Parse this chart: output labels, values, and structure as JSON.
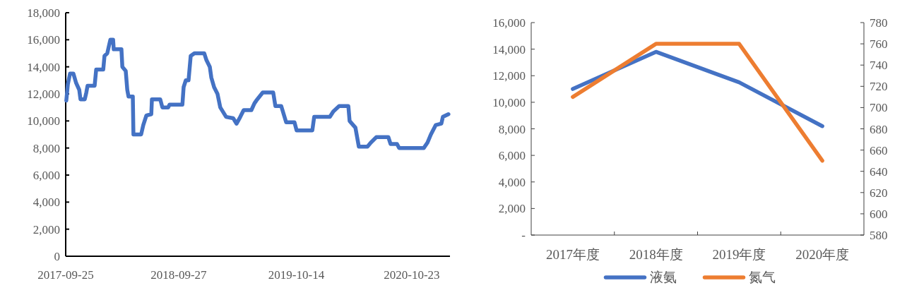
{
  "chart_data": [
    {
      "type": "line",
      "x": [
        "2017-09-27",
        "2017-10-02",
        "2017-10-09",
        "2017-10-20",
        "2017-10-29",
        "2017-11-08",
        "2017-11-12",
        "2017-11-26",
        "2017-12-01",
        "2017-12-05",
        "2017-12-28",
        "2018-01-02",
        "2018-01-25",
        "2018-01-29",
        "2018-02-07",
        "2018-02-12",
        "2018-02-17",
        "2018-02-26",
        "2018-02-28",
        "2018-03-25",
        "2018-03-28",
        "2018-04-08",
        "2018-04-13",
        "2018-04-17",
        "2018-05-01",
        "2018-05-03",
        "2018-05-28",
        "2018-06-04",
        "2018-06-14",
        "2018-06-30",
        "2018-07-02",
        "2018-07-29",
        "2018-08-05",
        "2018-08-24",
        "2018-08-28",
        "2018-10-09",
        "2018-10-13",
        "2018-10-20",
        "2018-10-29",
        "2018-11-05",
        "2018-11-17",
        "2018-12-19",
        "2018-12-26",
        "2019-01-06",
        "2019-01-11",
        "2019-01-20",
        "2019-01-31",
        "2019-02-09",
        "2019-02-28",
        "2019-03-23",
        "2019-04-03",
        "2019-04-15",
        "2019-04-26",
        "2019-05-21",
        "2019-05-31",
        "2019-06-06",
        "2019-06-27",
        "2019-07-31",
        "2019-08-07",
        "2019-08-26",
        "2019-09-11",
        "2019-10-08",
        "2019-10-15",
        "2019-12-05",
        "2019-12-11",
        "2020-01-31",
        "2020-02-11",
        "2020-03-01",
        "2020-03-31",
        "2020-04-04",
        "2020-04-23",
        "2020-05-04",
        "2020-06-01",
        "2020-06-12",
        "2020-06-30",
        "2020-08-08",
        "2020-08-15",
        "2020-09-05",
        "2020-09-12",
        "2020-12-01",
        "2020-12-13",
        "2020-12-24",
        "2021-01-09",
        "2021-01-27",
        "2021-02-01",
        "2021-02-19"
      ],
      "series": [
        {
          "color": "#4472c4",
          "values": [
            11500,
            12700,
            13500,
            13500,
            12800,
            12300,
            11600,
            11600,
            12100,
            12600,
            12600,
            13800,
            13800,
            14800,
            15000,
            15500,
            16000,
            16000,
            15300,
            15300,
            14000,
            13700,
            12300,
            11800,
            11800,
            9000,
            9000,
            9700,
            10400,
            10500,
            11600,
            11600,
            11000,
            11000,
            11200,
            11200,
            12500,
            13000,
            13000,
            14800,
            15000,
            15000,
            14500,
            14000,
            13200,
            12500,
            12000,
            11000,
            10300,
            10200,
            9800,
            10300,
            10800,
            10800,
            11300,
            11500,
            12100,
            12100,
            11100,
            11100,
            9900,
            9900,
            9300,
            9300,
            10300,
            10300,
            10700,
            11100,
            11100,
            10000,
            9500,
            8100,
            8100,
            8400,
            8800,
            8800,
            8300,
            8300,
            8000,
            8000,
            8400,
            9000,
            9700,
            9800,
            10300,
            10500
          ]
        }
      ],
      "xlim": [
        "2017-09-25",
        "2021-02-24"
      ],
      "xticks": [
        "2017-09-25",
        "2018-09-27",
        "2019-10-14",
        "2020-10-23"
      ],
      "ylim": [
        0,
        18000
      ],
      "yticks": [
        0,
        {
          "value": 2000,
          "label": "2,000"
        },
        {
          "value": 4000,
          "label": "4,000"
        },
        {
          "value": 6000,
          "label": "6,000"
        },
        {
          "value": 8000,
          "label": "8,000"
        },
        {
          "value": 10000,
          "label": "10,000"
        },
        {
          "value": 12000,
          "label": "12,000"
        },
        {
          "value": 14000,
          "label": "14,000"
        },
        {
          "value": 16000,
          "label": "16,000"
        },
        {
          "value": 18000,
          "label": "18,000"
        }
      ],
      "grid": false,
      "legend": false
    },
    {
      "type": "line",
      "categories": [
        "2017年度",
        "2018年度",
        "2019年度",
        "2020年度"
      ],
      "series": [
        {
          "name": "液氨",
          "color": "#4472c4",
          "values": [
            11000,
            13800,
            11500,
            8200
          ]
        },
        {
          "name": "氮气",
          "color": "#ed7d31",
          "axis": "y2",
          "values": [
            710,
            760,
            760,
            650
          ]
        }
      ],
      "ylim": [
        0,
        16000
      ],
      "yticks": [
        {
          "value": 0,
          "label": "-"
        },
        {
          "value": 2000,
          "label": "2,000"
        },
        {
          "value": 4000,
          "label": "4,000"
        },
        {
          "value": 6000,
          "label": "6,000"
        },
        {
          "value": 8000,
          "label": "8,000"
        },
        {
          "value": 10000,
          "label": "10,000"
        },
        {
          "value": 12000,
          "label": "12,000"
        },
        {
          "value": 14000,
          "label": "14,000"
        },
        {
          "value": 16000,
          "label": "16,000"
        }
      ],
      "y2lim": [
        580,
        780
      ],
      "y2ticks": [
        580,
        600,
        620,
        640,
        660,
        680,
        700,
        720,
        740,
        760,
        780
      ],
      "grid": false,
      "legend": "bottom"
    }
  ]
}
